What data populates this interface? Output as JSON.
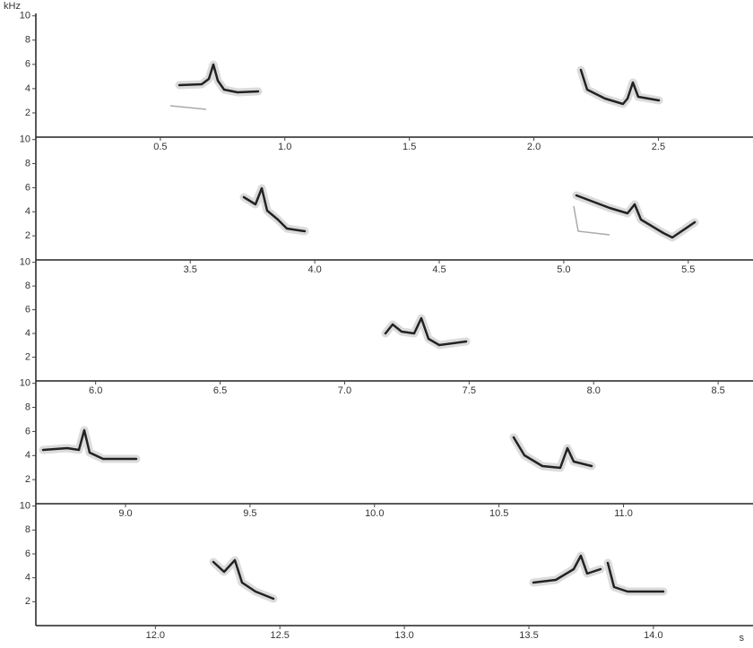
{
  "chart_data": [
    {
      "type": "spectrogram",
      "y_label": "kHz",
      "xlim": [
        0,
        2.88
      ],
      "ylim": [
        0,
        10.2
      ],
      "xticks": [
        0.5,
        {
          "value": 1,
          "label": "1.0"
        },
        1.5,
        {
          "value": 2,
          "label": "2.0"
        },
        2.5
      ],
      "yticks": [
        2,
        4,
        6,
        8,
        10
      ]
    },
    {
      "type": "spectrogram",
      "xlim": [
        2.88,
        5.76
      ],
      "ylim": [
        0,
        10.2
      ],
      "xticks": [
        3.5,
        {
          "value": 4,
          "label": "4.0"
        },
        4.5,
        {
          "value": 5,
          "label": "5.0"
        },
        5.5
      ],
      "yticks": [
        2,
        4,
        6,
        8,
        10
      ]
    },
    {
      "type": "spectrogram",
      "xlim": [
        5.76,
        8.64
      ],
      "ylim": [
        0,
        10.2
      ],
      "xticks": [
        {
          "value": 6,
          "label": "6.0"
        },
        6.5,
        {
          "value": 7,
          "label": "7.0"
        },
        7.5,
        {
          "value": 8,
          "label": "8.0"
        },
        8.5
      ],
      "yticks": [
        2,
        4,
        6,
        8,
        10
      ]
    },
    {
      "type": "spectrogram",
      "xlim": [
        8.64,
        11.52
      ],
      "ylim": [
        0,
        10.2
      ],
      "xticks": [
        {
          "value": 9,
          "label": "9.0"
        },
        9.5,
        {
          "value": 10,
          "label": "10.0"
        },
        10.5,
        {
          "value": 11,
          "label": "11.0"
        }
      ],
      "yticks": [
        2,
        4,
        6,
        8,
        10
      ]
    },
    {
      "type": "spectrogram",
      "x_label": "s",
      "xlim": [
        11.52,
        14.4
      ],
      "ylim": [
        0,
        10.2
      ],
      "xticks": [
        {
          "value": 12,
          "label": "12.0"
        },
        12.5,
        {
          "value": 13,
          "label": "13.0"
        },
        13.5,
        {
          "value": 14,
          "label": "14.0"
        }
      ],
      "yticks": [
        2,
        4,
        6,
        8,
        10
      ]
    }
  ]
}
